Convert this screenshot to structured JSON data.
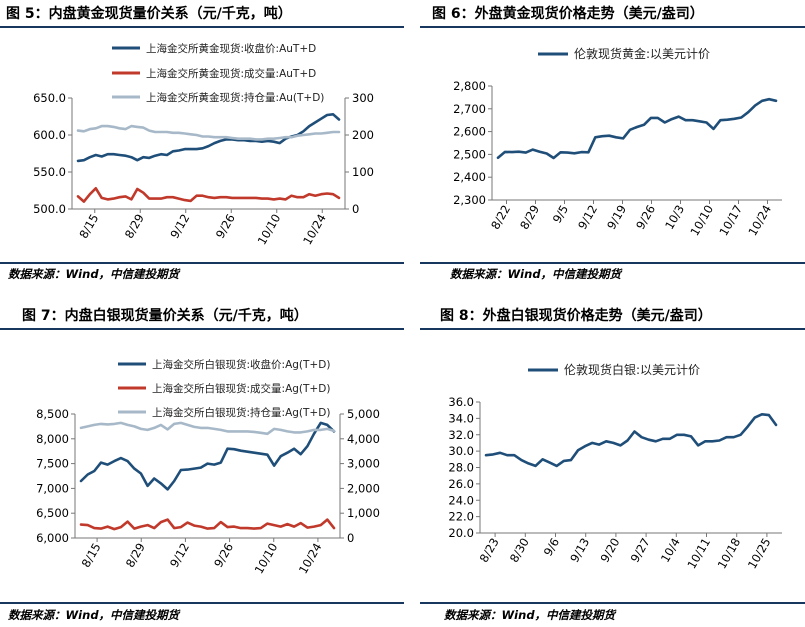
{
  "source_note": "数据来源：Wind，中信建投期货",
  "chart_data": [
    {
      "title": "图 5：内盘黄金现货量价关系（元/千克，吨）",
      "type": "line",
      "x_ticks": [
        "8/15",
        "8/29",
        "9/12",
        "9/26",
        "10/10",
        "10/24"
      ],
      "y_left": {
        "min": 500,
        "max": 650,
        "step": 50,
        "tick_labels": [
          "500.0",
          "550.0",
          "600.0",
          "650.0"
        ]
      },
      "y_right": {
        "min": 0,
        "max": 300,
        "step": 100,
        "tick_labels": [
          "0",
          "100",
          "200",
          "300"
        ]
      },
      "legend_position": "top",
      "series": [
        {
          "name": "上海金交所黄金现货:收盘价:AuT+D",
          "axis": "left",
          "color": "#1f4e79",
          "values": [
            565,
            566,
            570,
            573,
            571,
            574,
            574,
            573,
            572,
            570,
            566,
            570,
            569,
            572,
            574,
            573,
            578,
            579,
            581,
            581,
            581,
            582,
            585,
            589,
            592,
            594,
            594,
            593,
            593,
            592,
            592,
            591,
            592,
            591,
            589,
            595,
            598,
            600,
            605,
            612,
            617,
            622,
            627,
            628,
            621
          ]
        },
        {
          "name": "上海金交所黄金现货:成交量:AuT+D",
          "axis": "left",
          "color": "#c0392b",
          "values": [
            517,
            510,
            520,
            528,
            515,
            513,
            514,
            516,
            517,
            513,
            527,
            522,
            514,
            514,
            514,
            516,
            516,
            514,
            512,
            511,
            518,
            518,
            516,
            515,
            516,
            516,
            515,
            515,
            515,
            515,
            515,
            514,
            514,
            513,
            514,
            513,
            518,
            516,
            516,
            520,
            518,
            520,
            521,
            520,
            515
          ]
        },
        {
          "name": "上海金交所黄金现货:持仓量:Au(T+D)",
          "axis": "left",
          "color": "#a7b9c8",
          "values": [
            606,
            605,
            608,
            609,
            612,
            612,
            611,
            609,
            608,
            612,
            611,
            610,
            606,
            604,
            604,
            604,
            603,
            603,
            602,
            601,
            600,
            598,
            598,
            597,
            597,
            597,
            596,
            595,
            595,
            595,
            594,
            594,
            595,
            595,
            596,
            597,
            597,
            599,
            600,
            601,
            602,
            602,
            603,
            604,
            604
          ]
        }
      ]
    },
    {
      "title": "图 6：外盘黄金现货价格走势（美元/盎司）",
      "type": "line",
      "x_ticks": [
        "8/22",
        "8/29",
        "9/5",
        "9/12",
        "9/19",
        "9/26",
        "10/3",
        "10/10",
        "10/17",
        "10/24"
      ],
      "y_left": {
        "min": 2300,
        "max": 2800,
        "step": 100,
        "tick_labels": [
          "2,300",
          "2,400",
          "2,500",
          "2,600",
          "2,700",
          "2,800"
        ]
      },
      "legend_position": "top",
      "series": [
        {
          "name": "伦敦现货黄金:以美元计价",
          "axis": "left",
          "color": "#1f4e79",
          "values": [
            2485,
            2511,
            2510,
            2512,
            2508,
            2521,
            2512,
            2504,
            2484,
            2509,
            2508,
            2505,
            2510,
            2509,
            2575,
            2580,
            2582,
            2575,
            2570,
            2608,
            2620,
            2630,
            2660,
            2660,
            2640,
            2655,
            2666,
            2650,
            2650,
            2645,
            2640,
            2612,
            2650,
            2652,
            2656,
            2662,
            2685,
            2715,
            2735,
            2742,
            2735
          ]
        }
      ]
    },
    {
      "title": "图 7：内盘白银现货量价关系（元/千克，吨）",
      "type": "line",
      "x_ticks": [
        "8/15",
        "8/29",
        "9/12",
        "9/26",
        "10/10",
        "10/24"
      ],
      "y_left": {
        "min": 6000,
        "max": 8500,
        "step": 500,
        "tick_labels": [
          "6,000",
          "6,500",
          "7,000",
          "7,500",
          "8,000",
          "8,500"
        ]
      },
      "y_right": {
        "min": 0,
        "max": 5000,
        "step": 1000,
        "tick_labels": [
          "0",
          "1,000",
          "2,000",
          "3,000",
          "4,000",
          "5,000"
        ]
      },
      "legend_position": "top",
      "series": [
        {
          "name": "上海金交所白银现货:收盘价:Ag(T+D)",
          "axis": "left",
          "color": "#1f4e79",
          "values": [
            7150,
            7280,
            7350,
            7520,
            7480,
            7550,
            7610,
            7550,
            7400,
            7300,
            7050,
            7200,
            7100,
            6980,
            7150,
            7370,
            7380,
            7400,
            7420,
            7500,
            7480,
            7520,
            7800,
            7790,
            7760,
            7740,
            7720,
            7700,
            7680,
            7460,
            7650,
            7720,
            7800,
            7690,
            7850,
            8100,
            8320,
            8280,
            8150
          ]
        },
        {
          "name": "上海金交所白银现货:成交量:Ag(T+D)",
          "axis": "left",
          "color": "#c0392b",
          "values": [
            6270,
            6260,
            6200,
            6190,
            6230,
            6180,
            6220,
            6330,
            6190,
            6230,
            6260,
            6200,
            6320,
            6370,
            6200,
            6220,
            6310,
            6250,
            6230,
            6190,
            6200,
            6320,
            6220,
            6230,
            6200,
            6200,
            6190,
            6200,
            6290,
            6260,
            6230,
            6280,
            6230,
            6300,
            6210,
            6230,
            6260,
            6370,
            6200
          ]
        },
        {
          "name": "上海金交所白银现货:持仓量:Ag(T+D)",
          "axis": "left",
          "color": "#a7b9c8",
          "values": [
            8220,
            8250,
            8280,
            8300,
            8290,
            8300,
            8320,
            8280,
            8250,
            8200,
            8180,
            8220,
            8280,
            8190,
            8300,
            8320,
            8280,
            8240,
            8220,
            8220,
            8200,
            8180,
            8150,
            8150,
            8150,
            8150,
            8140,
            8120,
            8100,
            8200,
            8180,
            8150,
            8130,
            8130,
            8150,
            8180,
            8180,
            8200,
            8160
          ]
        }
      ]
    },
    {
      "title": "图 8：外盘白银现货价格走势（美元/盎司）",
      "type": "line",
      "x_ticks": [
        "8/23",
        "8/30",
        "9/6",
        "9/13",
        "9/20",
        "9/27",
        "10/4",
        "10/11",
        "10/18",
        "10/25"
      ],
      "y_left": {
        "min": 20,
        "max": 36,
        "step": 2,
        "tick_labels": [
          "20.0",
          "22.0",
          "24.0",
          "26.0",
          "28.0",
          "30.0",
          "32.0",
          "34.0",
          "36.0"
        ]
      },
      "legend_position": "top",
      "series": [
        {
          "name": "伦敦现货白银:以美元计价",
          "axis": "left",
          "color": "#1f4e79",
          "values": [
            29.5,
            29.6,
            29.8,
            29.5,
            29.5,
            28.9,
            28.5,
            28.2,
            29.0,
            28.6,
            28.2,
            28.8,
            28.9,
            30.1,
            30.6,
            31.0,
            30.8,
            31.2,
            31.0,
            30.7,
            31.3,
            32.4,
            31.7,
            31.4,
            31.2,
            31.5,
            31.5,
            32.0,
            32.0,
            31.8,
            30.7,
            31.2,
            31.2,
            31.3,
            31.7,
            31.7,
            32.0,
            33.0,
            34.1,
            34.5,
            34.4,
            33.2
          ]
        }
      ]
    }
  ]
}
